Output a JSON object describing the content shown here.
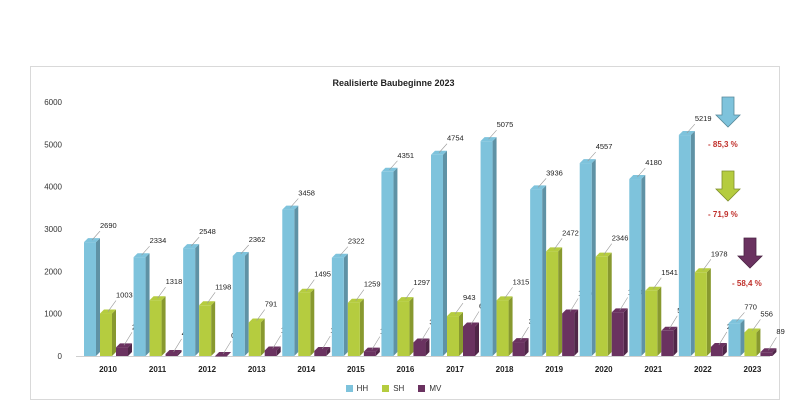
{
  "chart_data": {
    "type": "bar",
    "title": "Realisierte Baubeginne 2023",
    "xlabel": "",
    "ylabel": "",
    "ylim": [
      0,
      6000
    ],
    "yticks": [
      0,
      1000,
      2000,
      3000,
      4000,
      5000,
      6000
    ],
    "categories": [
      "2010",
      "2011",
      "2012",
      "2013",
      "2014",
      "2015",
      "2016",
      "2017",
      "2018",
      "2019",
      "2020",
      "2021",
      "2022",
      "2023"
    ],
    "series": [
      {
        "name": "HH",
        "color": "#7ec3dc",
        "values": [
          2690,
          2334,
          2548,
          2362,
          3458,
          2322,
          4351,
          4754,
          5075,
          3936,
          4557,
          4180,
          5219,
          770
        ]
      },
      {
        "name": "SH",
        "color": "#b5cc3f",
        "values": [
          1003,
          1318,
          1198,
          791,
          1495,
          1259,
          1297,
          943,
          1315,
          2472,
          2346,
          1541,
          1978,
          556
        ]
      },
      {
        "name": "MV",
        "color": "#6a3260",
        "values": [
          205,
          48,
          0,
          130,
          118,
          104,
          319,
          697,
          329,
          1004,
          1030,
          595,
          214,
          89
        ]
      }
    ],
    "annotations": [
      {
        "text": "- 85,3 %",
        "arrow_color": "#7ec3dc"
      },
      {
        "text": "- 71,9 %",
        "arrow_color": "#b5cc3f"
      },
      {
        "text": "- 58,4 %",
        "arrow_color": "#6a3260"
      }
    ],
    "grid": false,
    "legend_position": "bottom"
  }
}
